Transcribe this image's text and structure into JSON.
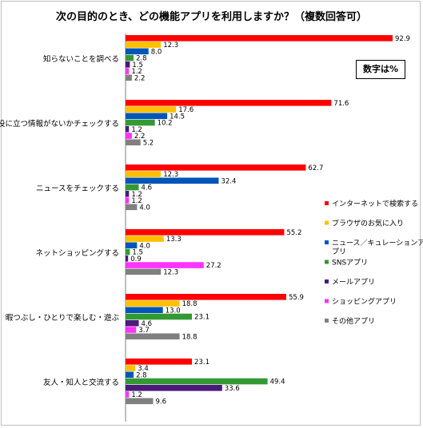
{
  "chart_data": {
    "type": "bar",
    "orientation": "horizontal",
    "title": "次の目的のとき、どの機能アプリを利用しますか？（複数回答可）",
    "note": "数字は%",
    "categories": [
      "知らないことを調べる",
      "役に立つ情報がないかチェックする",
      "ニュースをチェックする",
      "ネットショッピングする",
      "暇つぶし・ひとりで楽しむ・遊ぶ",
      "友人・知人と交流する"
    ],
    "series": [
      {
        "name": "インターネットで検索する",
        "color": "#ff0000",
        "values": [
          92.9,
          71.6,
          62.7,
          55.2,
          55.9,
          23.1
        ]
      },
      {
        "name": "ブラウザのお気に入り",
        "color": "#ffc000",
        "values": [
          12.3,
          17.6,
          12.3,
          13.3,
          18.8,
          3.4
        ]
      },
      {
        "name": "ニュース／キュレーションアプリ",
        "color": "#0055b8",
        "values": [
          8.0,
          14.5,
          32.4,
          4.0,
          13.0,
          2.8
        ]
      },
      {
        "name": "SNSアプリ",
        "color": "#339933",
        "values": [
          2.8,
          10.2,
          4.6,
          1.5,
          23.1,
          49.4
        ]
      },
      {
        "name": "メールアプリ",
        "color": "#4b1a7a",
        "values": [
          1.5,
          1.2,
          1.2,
          0.9,
          4.6,
          33.6
        ]
      },
      {
        "name": "ショッピングアプリ",
        "color": "#ff33ff",
        "values": [
          1.2,
          2.2,
          1.2,
          27.2,
          3.7,
          1.2
        ]
      },
      {
        "name": "その他アプリ",
        "color": "#808080",
        "values": [
          2.2,
          5.2,
          4.0,
          12.3,
          18.8,
          9.6
        ]
      }
    ],
    "xlim": [
      0,
      100
    ],
    "legend_position": "right"
  }
}
